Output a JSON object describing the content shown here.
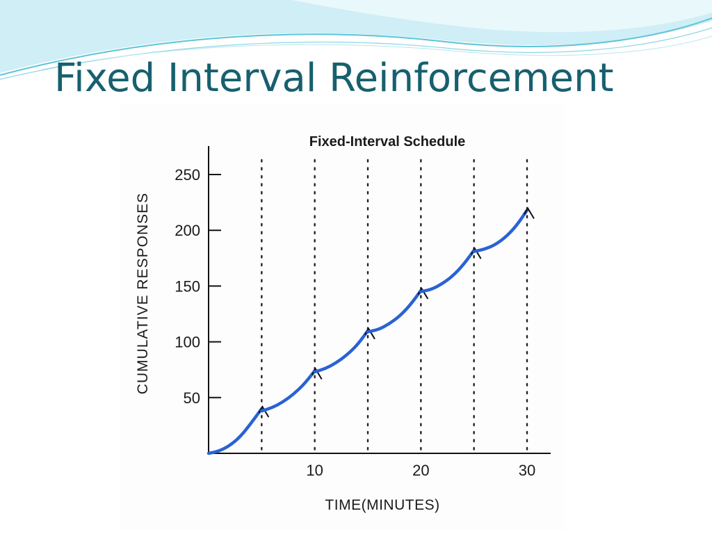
{
  "slide": {
    "title": "Fixed Interval Reinforcement",
    "title_color": "#17606e",
    "accent_color": "#5bc3d8"
  },
  "chart_data": {
    "type": "line",
    "title": "Fixed-Interval Schedule",
    "xlabel": "TIME(MINUTES)",
    "ylabel": "CUMULATIVE RESPONSES",
    "xlim": [
      0,
      32
    ],
    "ylim": [
      0,
      275
    ],
    "x_ticks": [
      10,
      20,
      30
    ],
    "x_tick_labels": [
      "10",
      "20",
      "30"
    ],
    "y_ticks": [
      50,
      100,
      150,
      200,
      250
    ],
    "y_tick_labels": [
      "50",
      "100",
      "150",
      "200",
      "250"
    ],
    "reinforcement_times": [
      5,
      10,
      15,
      20,
      25,
      30
    ],
    "grid": false,
    "line_color": "#2a62d4",
    "series": [
      {
        "segments": [
          {
            "x": [
              0,
              1,
              2,
              3,
              4,
              5
            ],
            "y": [
              0,
              2,
              7,
              15,
              27,
              40
            ]
          },
          {
            "x": [
              5,
              6,
              7,
              8,
              9,
              10
            ],
            "y": [
              38,
              41,
              46,
              53,
              62,
              74
            ]
          },
          {
            "x": [
              10,
              11,
              12,
              13,
              14,
              15
            ],
            "y": [
              73,
              76,
              81,
              88,
              97,
              110
            ]
          },
          {
            "x": [
              15,
              16,
              17,
              18,
              19,
              20
            ],
            "y": [
              109,
              111,
              116,
              123,
              133,
              146
            ]
          },
          {
            "x": [
              20,
              21,
              22,
              23,
              24,
              25
            ],
            "y": [
              145,
              147,
              152,
              159,
              169,
              182
            ]
          },
          {
            "x": [
              25,
              26,
              27,
              28,
              29,
              30
            ],
            "y": [
              181,
              183,
              187,
              194,
              204,
              218
            ]
          }
        ]
      }
    ]
  }
}
